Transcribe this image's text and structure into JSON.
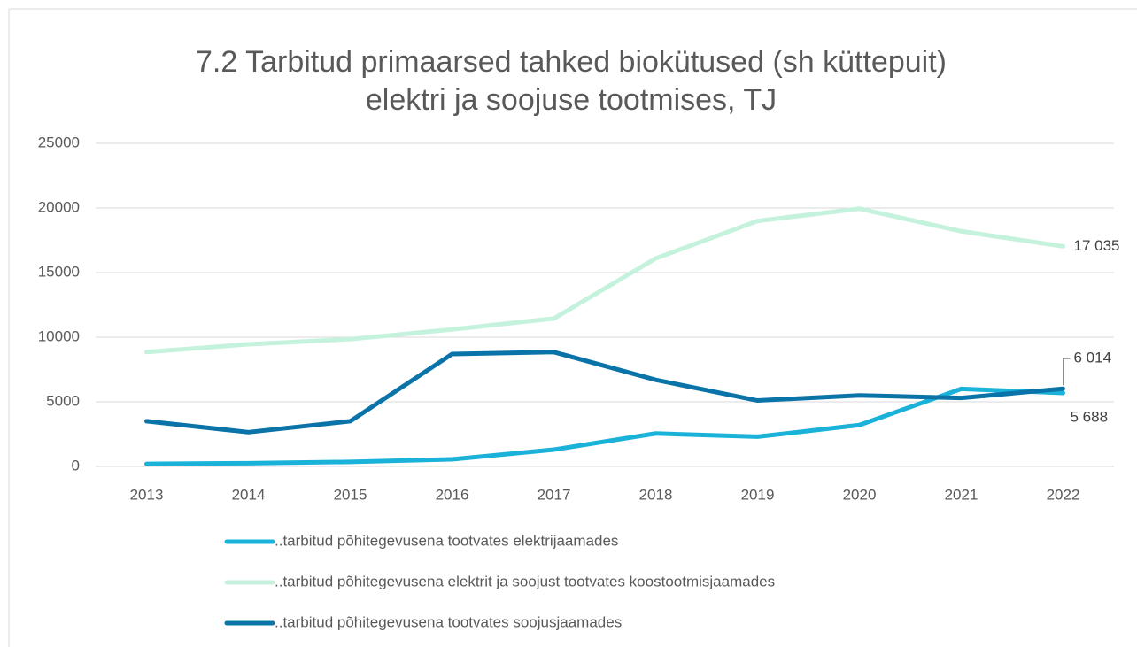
{
  "chart_data": {
    "type": "line",
    "title": [
      "7.2 Tarbitud primaarsed tahked biokütused (sh küttepuit)",
      "elektri ja soojuse tootmises, TJ"
    ],
    "categories": [
      "2013",
      "2014",
      "2015",
      "2016",
      "2017",
      "2018",
      "2019",
      "2020",
      "2021",
      "2022"
    ],
    "series": [
      {
        "name": "..tarbitud põhitegevusena tootvates elektrijaamades",
        "color": "#1ab2d8",
        "values": [
          200,
          250,
          350,
          550,
          1300,
          2550,
          2300,
          3200,
          6000,
          5688
        ],
        "value_labels": [
          null,
          null,
          null,
          null,
          null,
          null,
          null,
          null,
          null,
          "5 688"
        ]
      },
      {
        "name": "..tarbitud põhitegevusena elektrit ja soojust tootvates koostootmisjaamades",
        "color": "#c4f2dc",
        "values": [
          8850,
          9450,
          9850,
          10600,
          11450,
          16100,
          19000,
          19950,
          18200,
          17035
        ],
        "value_labels": [
          null,
          null,
          null,
          null,
          null,
          null,
          null,
          null,
          null,
          "17 035"
        ]
      },
      {
        "name": "..tarbitud põhitegevusena tootvates soojusjaamades",
        "color": "#0a73a8",
        "values": [
          3500,
          2650,
          3500,
          8700,
          8850,
          6700,
          5100,
          5500,
          5300,
          6014
        ],
        "value_labels": [
          null,
          null,
          null,
          null,
          null,
          null,
          null,
          null,
          null,
          "6 014"
        ]
      }
    ],
    "ylim": [
      0,
      25000
    ],
    "yticks": [
      0,
      5000,
      10000,
      15000,
      20000,
      25000
    ],
    "grid": true,
    "legend": "bottom"
  }
}
